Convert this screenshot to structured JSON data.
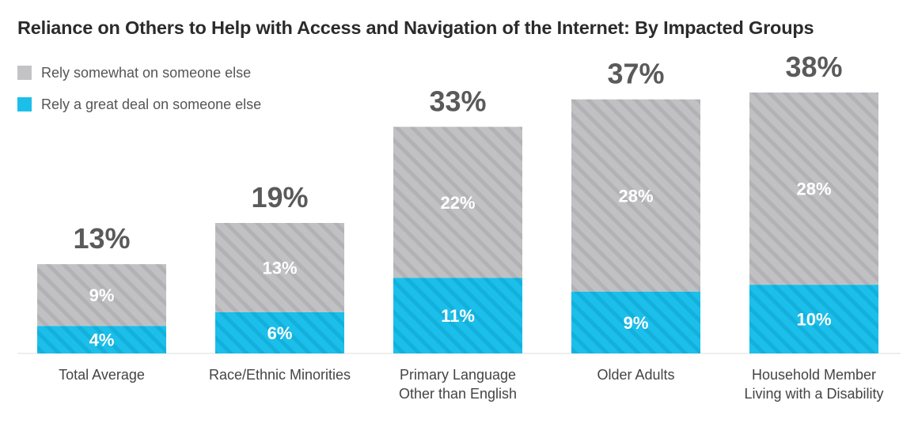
{
  "chart_data": {
    "type": "bar",
    "stacked": true,
    "title": "Reliance on Others to Help with Access and Navigation of the Internet: By Impacted Groups",
    "categories": [
      [
        "Total Average"
      ],
      [
        "Race/Ethnic Minorities"
      ],
      [
        "Primary Language",
        "Other than English"
      ],
      [
        "Older Adults"
      ],
      [
        "Household Member",
        "Living with a Disability"
      ]
    ],
    "series": [
      {
        "name": "Rely a great deal on someone else",
        "color": "#1bbfea",
        "values": [
          4,
          6,
          11,
          9,
          10
        ],
        "labels": [
          "4%",
          "6%",
          "11%",
          "9%",
          "10%"
        ]
      },
      {
        "name": "Rely somewhat on someone else",
        "color": "#c3c3c6",
        "values": [
          9,
          13,
          22,
          28,
          28
        ],
        "labels": [
          "9%",
          "13%",
          "22%",
          "28%",
          "28%"
        ]
      }
    ],
    "totals": [
      13,
      19,
      33,
      37,
      38
    ],
    "total_labels": [
      "13%",
      "19%",
      "33%",
      "37%",
      "38%"
    ],
    "legend": [
      {
        "label": "Rely somewhat on someone else",
        "color": "#c3c3c6"
      },
      {
        "label": "Rely a great deal on someone else",
        "color": "#1bbfea"
      }
    ],
    "ylim": [
      0,
      38
    ],
    "xlabel": "",
    "ylabel": "",
    "grid": false
  }
}
